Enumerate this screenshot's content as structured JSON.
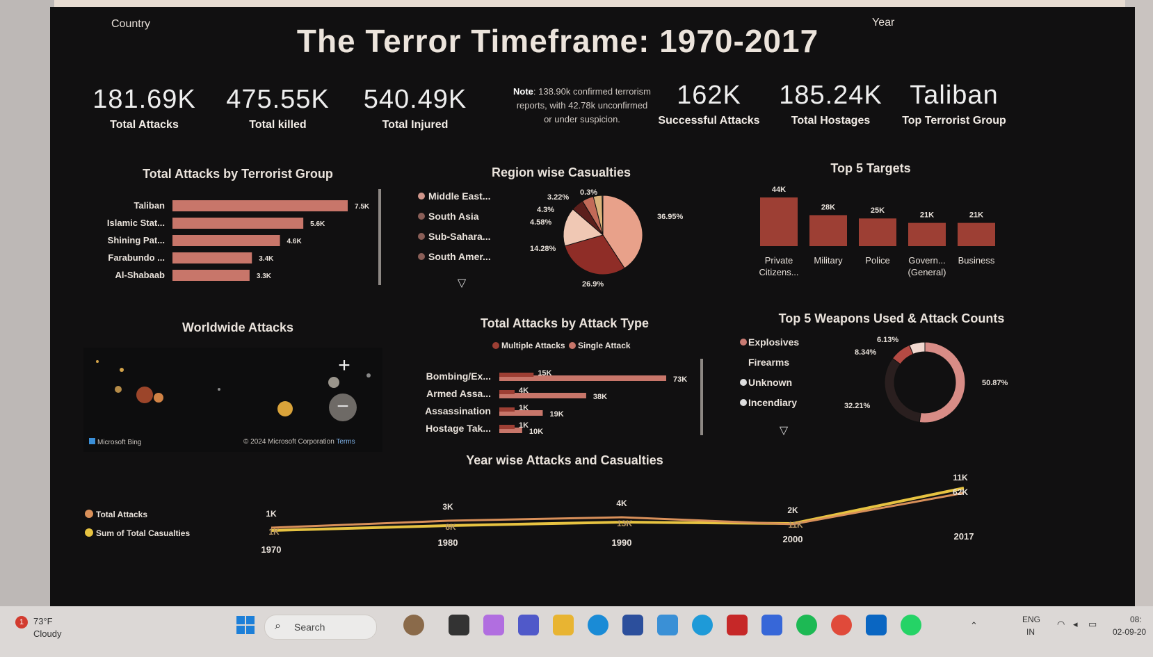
{
  "header": {
    "title": "The Terror Timeframe: 1970-2017",
    "country_label": "Country",
    "year_label": "Year"
  },
  "kpis": [
    {
      "value": "181.69K",
      "label": "Total Attacks"
    },
    {
      "value": "475.55K",
      "label": "Total killed"
    },
    {
      "value": "540.49K",
      "label": "Total Injured"
    },
    {
      "value": "162K",
      "label": "Successful Attacks"
    },
    {
      "value": "185.24K",
      "label": "Total Hostages"
    },
    {
      "value": "Taliban",
      "label": "Top Terrorist Group"
    }
  ],
  "note": {
    "label": "Note",
    "text": ": 138.90k confirmed terrorism reports, with 42.78k unconfirmed or under suspicion."
  },
  "visual_titles": {
    "group": "Total Attacks by Terrorist Group",
    "region": "Region wise Casualties",
    "targets": "Top 5 Targets",
    "map": "Worldwide Attacks",
    "attack_type": "Total Attacks by Attack Type",
    "weapons": "Top 5 Weapons Used & Attack Counts",
    "year": "Year wise Attacks and Casualties"
  },
  "map": {
    "bing": "Microsoft Bing",
    "copyright": "© 2024 Microsoft Corporation",
    "terms": "Terms"
  },
  "chart_data": [
    {
      "type": "bar",
      "title": "Total Attacks by Terrorist Group",
      "categories": [
        "Taliban",
        "Islamic Stat...",
        "Shining Pat...",
        "Farabundo ...",
        "Al-Shabaab"
      ],
      "values": [
        7500,
        5600,
        4600,
        3400,
        3300
      ],
      "labels": [
        "7.5K",
        "5.6K",
        "4.6K",
        "3.4K",
        "3.3K"
      ]
    },
    {
      "type": "pie",
      "title": "Region wise Casualties",
      "legend": [
        "Middle East...",
        "South Asia",
        "Sub-Sahara...",
        "South Amer..."
      ],
      "slices": [
        36.95,
        26.9,
        14.28,
        4.58,
        4.3,
        3.22,
        0.3
      ],
      "labels": [
        "36.95%",
        "26.9%",
        "14.28%",
        "4.58%",
        "4.3%",
        "3.22%",
        "0.3%"
      ]
    },
    {
      "type": "bar",
      "title": "Top 5 Targets",
      "categories": [
        "Private Citizens...",
        "Military",
        "Police",
        "Govern... (General)",
        "Business"
      ],
      "values": [
        44000,
        28000,
        25000,
        21000,
        21000
      ],
      "labels": [
        "44K",
        "28K",
        "25K",
        "21K",
        "21K"
      ]
    },
    {
      "type": "bar",
      "title": "Total Attacks by Attack Type",
      "legend": [
        "Multiple Attacks",
        "Single Attack"
      ],
      "categories": [
        "Bombing/Ex...",
        "Armed Assa...",
        "Assassination",
        "Hostage Tak..."
      ],
      "series": [
        {
          "name": "Multiple Attacks",
          "values": [
            15000,
            4000,
            1000,
            1000
          ],
          "labels": [
            "15K",
            "4K",
            "1K",
            "1K"
          ]
        },
        {
          "name": "Single Attack",
          "values": [
            73000,
            38000,
            19000,
            10000
          ],
          "labels": [
            "73K",
            "38K",
            "19K",
            "10K"
          ]
        }
      ]
    },
    {
      "type": "pie",
      "title": "Top 5 Weapons Used & Attack Counts",
      "legend": [
        "Explosives",
        "Firearms",
        "Unknown",
        "Incendiary"
      ],
      "slices": [
        50.87,
        32.21,
        8.34,
        6.13
      ],
      "labels": [
        "50.87%",
        "32.21%",
        "8.34%",
        "6.13%"
      ]
    },
    {
      "type": "line",
      "title": "Year wise Attacks and Casualties",
      "legend": [
        "Total Attacks",
        "Sum of Total Casualties"
      ],
      "x": [
        "1970",
        "1980",
        "1990",
        "2000",
        "2017"
      ],
      "series": [
        {
          "name": "Total Attacks",
          "values": [
            1000,
            3000,
            4000,
            2000,
            11000
          ],
          "labels": [
            "1K",
            "3K",
            "4K",
            "2K",
            "11K"
          ]
        },
        {
          "name": "Sum of Total Casualties",
          "values": [
            1000,
            8000,
            13000,
            11000,
            62000
          ],
          "labels": [
            "1K",
            "8K",
            "13K",
            "11K",
            "62K"
          ]
        }
      ]
    }
  ],
  "colors": {
    "bar": "#c8766a",
    "bar_dark": "#9d3f34",
    "pie1": "#e8a18a",
    "pie2": "#8f2d27",
    "pie3": "#f0c8b4",
    "line_attacks": "#d9905a",
    "line_casualties": "#e7c341"
  },
  "taskbar": {
    "weather_temp": "73°F",
    "weather_text": "Cloudy",
    "weather_badge": "1",
    "search": "Search",
    "lang": "ENG",
    "region": "IN",
    "time": "08:",
    "date": "02-09-20"
  }
}
